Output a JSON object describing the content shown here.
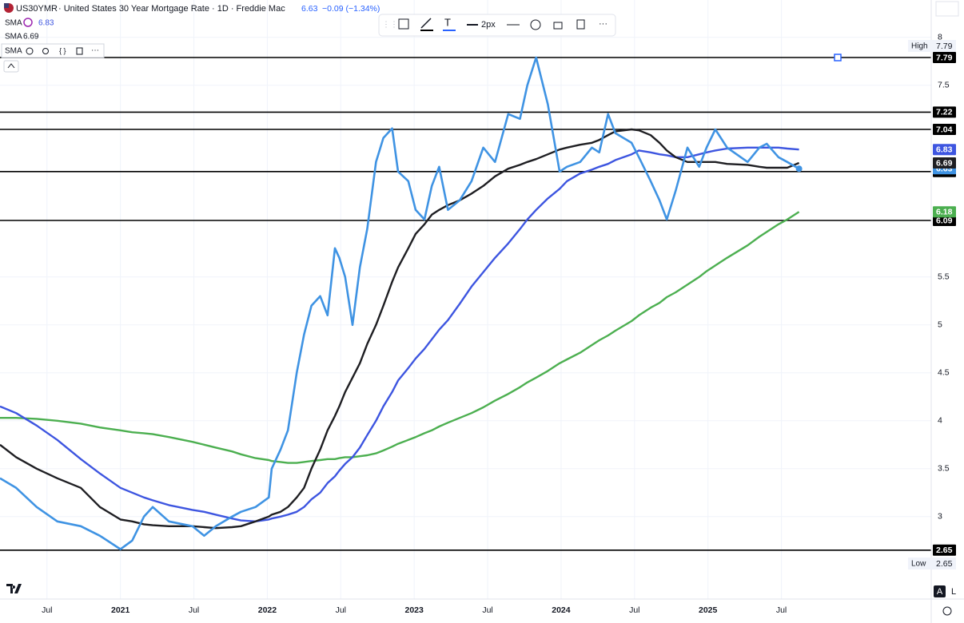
{
  "chart_data": {
    "type": "line",
    "title": "· United States 30 Year Mortgage Rate · 1D · Freddie Mac",
    "change": "−0.09 (−1.34%)",
    "toolbar_width": "2px",
    "scale_buttons": [
      "A",
      "L"
    ],
    "high_label": "High",
    "high": 7.79,
    "low_label": "Low",
    "low": 2.65,
    "xlim": [
      2020.18,
      2026.52
    ],
    "ylim": [
      2.14,
      8.39
    ],
    "xticks": [
      {
        "value": 2020.5,
        "label": "Jul"
      },
      2021,
      {
        "value": 2021.5,
        "label": "Jul"
      },
      2022,
      {
        "value": 2022.5,
        "label": "Jul"
      },
      2023,
      {
        "value": 2023.5,
        "label": "Jul"
      },
      2024,
      {
        "value": 2024.5,
        "label": "Jul"
      },
      2025,
      {
        "value": 2025.5,
        "label": "Jul"
      }
    ],
    "yticks": [
      3,
      3.5,
      4,
      4.5,
      5,
      5.5,
      7.5,
      8
    ],
    "grid": true,
    "hlines": [
      7.79,
      7.22,
      7.04,
      6.6,
      6.09,
      2.65
    ],
    "hline_color": "#000000",
    "x": [
      2020.18,
      2020.29,
      2020.43,
      2020.57,
      2020.73,
      2020.86,
      2021.0,
      2021.08,
      2021.16,
      2021.22,
      2021.33,
      2021.49,
      2021.57,
      2021.65,
      2021.76,
      2021.82,
      2021.92,
      2022.01,
      2022.03,
      2022.09,
      2022.14,
      2022.2,
      2022.25,
      2022.3,
      2022.36,
      2022.41,
      2022.46,
      2022.49,
      2022.53,
      2022.58,
      2022.63,
      2022.68,
      2022.74,
      2022.79,
      2022.85,
      2022.89,
      2022.96,
      2023.01,
      2023.07,
      2023.12,
      2023.17,
      2023.23,
      2023.31,
      2023.39,
      2023.47,
      2023.55,
      2023.64,
      2023.72,
      2023.77,
      2023.83,
      2023.91,
      2023.99,
      2024.04,
      2024.13,
      2024.21,
      2024.26,
      2024.32,
      2024.37,
      2024.48,
      2024.53,
      2024.61,
      2024.67,
      2024.72,
      2024.78,
      2024.86,
      2024.94,
      2024.99,
      2025.05,
      2025.13,
      2025.27,
      2025.35,
      2025.4,
      2025.48,
      2025.54,
      2025.62
    ],
    "series": [
      {
        "name": "US30YMR",
        "color": "#3f93e3",
        "width": 2.6,
        "values": [
          3.4,
          3.3,
          3.1,
          2.95,
          2.9,
          2.8,
          2.66,
          2.75,
          3.0,
          3.1,
          2.95,
          2.9,
          2.8,
          2.9,
          3.0,
          3.05,
          3.1,
          3.2,
          3.5,
          3.7,
          3.9,
          4.5,
          4.9,
          5.2,
          5.3,
          5.1,
          5.8,
          5.7,
          5.5,
          5.0,
          5.6,
          6.0,
          6.7,
          6.95,
          7.05,
          6.6,
          6.5,
          6.2,
          6.1,
          6.45,
          6.65,
          6.2,
          6.3,
          6.5,
          6.85,
          6.7,
          7.2,
          7.15,
          7.5,
          7.79,
          7.3,
          6.6,
          6.65,
          6.7,
          6.85,
          6.8,
          7.2,
          7.0,
          6.9,
          6.75,
          6.5,
          6.3,
          6.1,
          6.4,
          6.85,
          6.65,
          6.85,
          7.04,
          6.85,
          6.7,
          6.85,
          6.89,
          6.75,
          6.7,
          6.63
        ]
      },
      {
        "name": "SMA",
        "color": "#3d55e0",
        "width": 2.4,
        "values": [
          4.15,
          4.08,
          3.95,
          3.8,
          3.6,
          3.45,
          3.3,
          3.25,
          3.2,
          3.17,
          3.12,
          3.07,
          3.05,
          3.02,
          2.98,
          2.96,
          2.95,
          2.97,
          2.98,
          3.0,
          3.02,
          3.05,
          3.1,
          3.18,
          3.25,
          3.35,
          3.42,
          3.48,
          3.55,
          3.62,
          3.72,
          3.85,
          4.0,
          4.15,
          4.3,
          4.42,
          4.55,
          4.65,
          4.75,
          4.85,
          4.95,
          5.05,
          5.22,
          5.4,
          5.55,
          5.7,
          5.85,
          6.0,
          6.1,
          6.2,
          6.32,
          6.42,
          6.5,
          6.58,
          6.62,
          6.65,
          6.68,
          6.72,
          6.78,
          6.82,
          6.8,
          6.78,
          6.77,
          6.75,
          6.75,
          6.78,
          6.8,
          6.82,
          6.84,
          6.85,
          6.85,
          6.85,
          6.85,
          6.84,
          6.83
        ]
      },
      {
        "name": "SMA",
        "color": "#1e1e22",
        "width": 2.4,
        "values": [
          3.75,
          3.62,
          3.5,
          3.4,
          3.3,
          3.1,
          2.97,
          2.95,
          2.92,
          2.91,
          2.9,
          2.9,
          2.89,
          2.88,
          2.89,
          2.9,
          2.95,
          3.0,
          3.02,
          3.05,
          3.1,
          3.2,
          3.3,
          3.5,
          3.7,
          3.9,
          4.05,
          4.15,
          4.3,
          4.45,
          4.6,
          4.8,
          5.0,
          5.2,
          5.45,
          5.6,
          5.8,
          5.95,
          6.05,
          6.15,
          6.2,
          6.25,
          6.3,
          6.37,
          6.45,
          6.55,
          6.63,
          6.67,
          6.7,
          6.73,
          6.78,
          6.83,
          6.85,
          6.88,
          6.9,
          6.93,
          6.98,
          7.02,
          7.04,
          7.03,
          6.98,
          6.9,
          6.82,
          6.75,
          6.7,
          6.7,
          6.7,
          6.7,
          6.68,
          6.67,
          6.65,
          6.64,
          6.64,
          6.64,
          6.69
        ]
      },
      {
        "name": "SMA",
        "color": "#4caf50",
        "width": 2.4,
        "values": [
          4.03,
          4.03,
          4.02,
          4.0,
          3.97,
          3.93,
          3.9,
          3.88,
          3.87,
          3.86,
          3.83,
          3.78,
          3.75,
          3.72,
          3.68,
          3.65,
          3.61,
          3.59,
          3.58,
          3.57,
          3.56,
          3.56,
          3.57,
          3.58,
          3.59,
          3.6,
          3.6,
          3.61,
          3.62,
          3.62,
          3.63,
          3.64,
          3.66,
          3.69,
          3.73,
          3.76,
          3.8,
          3.83,
          3.87,
          3.9,
          3.94,
          3.98,
          4.03,
          4.08,
          4.14,
          4.21,
          4.28,
          4.35,
          4.4,
          4.45,
          4.52,
          4.6,
          4.64,
          4.71,
          4.79,
          4.84,
          4.89,
          4.94,
          5.04,
          5.1,
          5.18,
          5.23,
          5.29,
          5.34,
          5.42,
          5.5,
          5.56,
          5.62,
          5.7,
          5.83,
          5.92,
          5.97,
          6.05,
          6.1,
          6.18
        ]
      }
    ]
  }
}
